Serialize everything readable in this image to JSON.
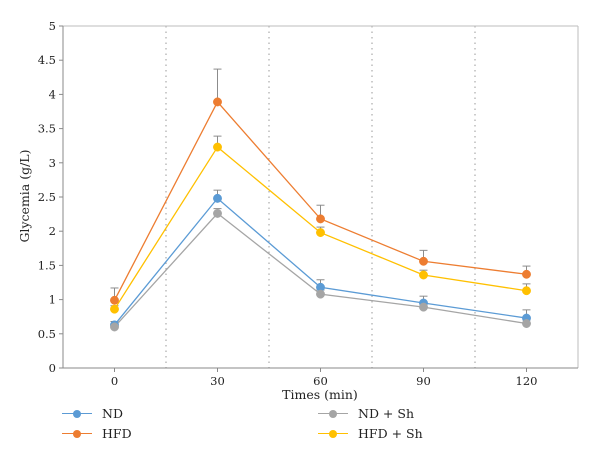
{
  "chart_data": {
    "type": "line",
    "xlabel": "Times (min)",
    "ylabel": "Glycemia (g/L)",
    "x": [
      0,
      30,
      60,
      90,
      120
    ],
    "categories": [
      "0",
      "30",
      "60",
      "90",
      "120"
    ],
    "ylim": [
      0,
      5
    ],
    "yticks": [
      "0",
      "0.5",
      "1",
      "1.5",
      "2",
      "2.5",
      "3",
      "3.5",
      "4",
      "4.5",
      "5"
    ],
    "grid": "dotted vertical",
    "legend_position": "bottom",
    "series": [
      {
        "name": "ND",
        "color": "#5B9BD5",
        "values": [
          0.63,
          2.48,
          1.18,
          0.95,
          0.73
        ],
        "errors": [
          0.05,
          0.12,
          0.11,
          0.1,
          0.12
        ]
      },
      {
        "name": "HFD",
        "color": "#ED7D31",
        "values": [
          0.99,
          3.89,
          2.18,
          1.56,
          1.37
        ],
        "errors": [
          0.18,
          0.48,
          0.2,
          0.16,
          0.12
        ]
      },
      {
        "name": "ND + Sh",
        "color": "#A5A5A5",
        "values": [
          0.6,
          2.26,
          1.08,
          0.89,
          0.65
        ],
        "errors": [
          0.04,
          0.07,
          0.06,
          0.05,
          0.05
        ]
      },
      {
        "name": "HFD + Sh",
        "color": "#FFC000",
        "values": [
          0.86,
          3.23,
          1.98,
          1.36,
          1.13
        ],
        "errors": [
          0.05,
          0.16,
          0.08,
          0.07,
          0.1
        ]
      }
    ]
  }
}
